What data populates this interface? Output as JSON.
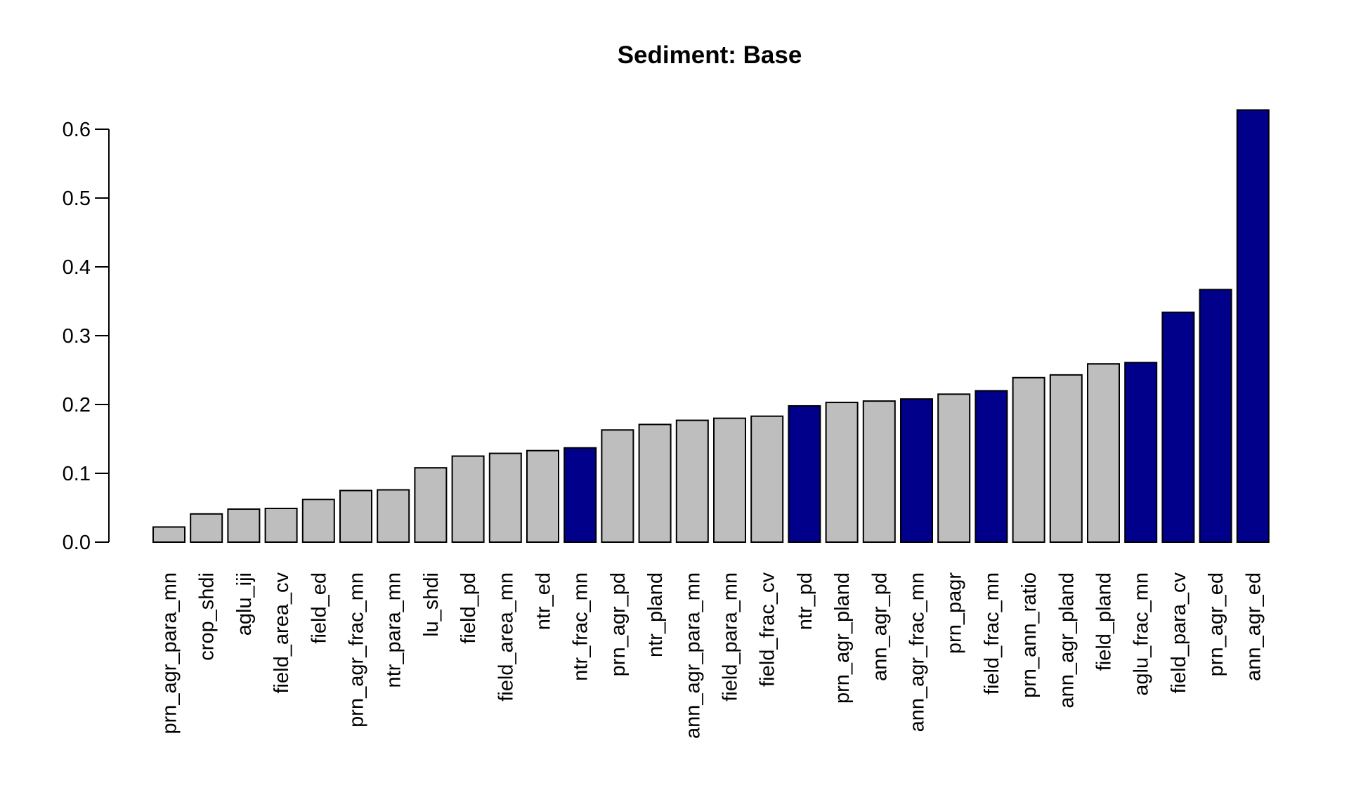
{
  "chart_data": {
    "type": "bar",
    "title": "Sediment: Base",
    "xlabel": "",
    "ylabel": "",
    "ylim": [
      0,
      0.63
    ],
    "yticks": [
      0.0,
      0.1,
      0.2,
      0.3,
      0.4,
      0.5,
      0.6
    ],
    "ytick_labels": [
      "0.0",
      "0.1",
      "0.2",
      "0.3",
      "0.4",
      "0.5",
      "0.6"
    ],
    "grid": false,
    "colors": {
      "highlight": "#00008B",
      "default": "#BEBEBE",
      "outline": "#000000"
    },
    "categories": [
      "prn_agr_para_mn",
      "crop_shdi",
      "aglu_iji",
      "field_area_cv",
      "field_ed",
      "prn_agr_frac_mn",
      "ntr_para_mn",
      "lu_shdi",
      "field_pd",
      "field_area_mn",
      "ntr_ed",
      "ntr_frac_mn",
      "prn_agr_pd",
      "ntr_pland",
      "ann_agr_para_mn",
      "field_para_mn",
      "field_frac_cv",
      "ntr_pd",
      "prn_agr_pland",
      "ann_agr_pd",
      "ann_agr_frac_mn",
      "prn_pagr",
      "field_frac_mn",
      "prn_ann_ratio",
      "ann_agr_pland",
      "field_pland",
      "aglu_frac_mn",
      "field_para_cv",
      "prn_agr_ed",
      "ann_agr_ed"
    ],
    "values": [
      0.022,
      0.041,
      0.048,
      0.049,
      0.062,
      0.075,
      0.076,
      0.108,
      0.125,
      0.129,
      0.133,
      0.137,
      0.163,
      0.171,
      0.177,
      0.18,
      0.183,
      0.198,
      0.203,
      0.205,
      0.208,
      0.215,
      0.22,
      0.239,
      0.243,
      0.259,
      0.261,
      0.334,
      0.367,
      0.628
    ],
    "highlighted": [
      false,
      false,
      false,
      false,
      false,
      false,
      false,
      false,
      false,
      false,
      false,
      true,
      false,
      false,
      false,
      false,
      false,
      true,
      false,
      false,
      true,
      false,
      true,
      false,
      false,
      false,
      true,
      true,
      true,
      true
    ]
  }
}
